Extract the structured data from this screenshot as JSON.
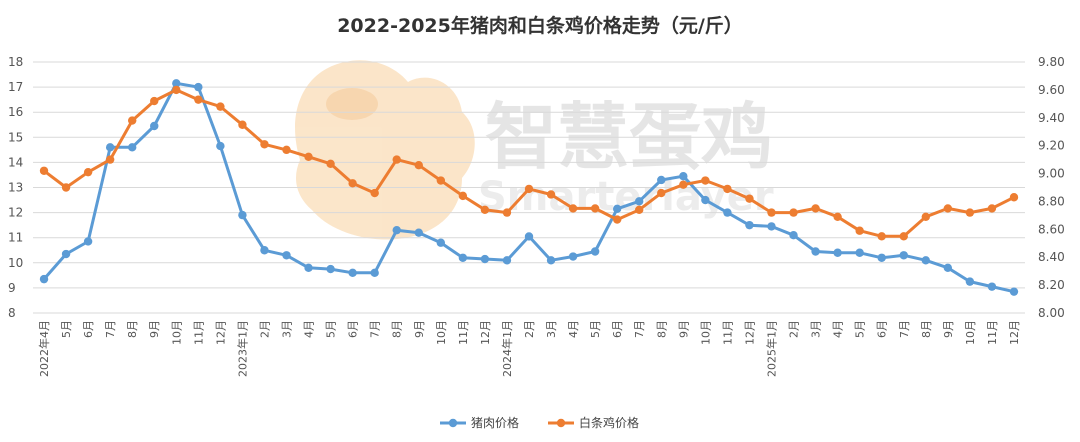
{
  "chart_data": {
    "type": "line",
    "title": "2022-2025年猪肉和白条鸡价格走势（元/斤）",
    "categories": [
      "2022年4月",
      "5月",
      "6月",
      "7月",
      "8月",
      "9月",
      "10月",
      "11月",
      "12月",
      "2023年1月",
      "2月",
      "3月",
      "4月",
      "5月",
      "6月",
      "7月",
      "8月",
      "9月",
      "10月",
      "11月",
      "12月",
      "2024年1月",
      "2月",
      "3月",
      "4月",
      "5月",
      "6月",
      "7月",
      "8月",
      "9月",
      "10月",
      "11月",
      "12月",
      "2025年1月",
      "2月",
      "3月",
      "4月",
      "5月",
      "6月",
      "7月",
      "8月",
      "9月",
      "10月",
      "11月",
      "12月"
    ],
    "y_left": {
      "min": 8,
      "max": 18,
      "ticks": [
        "8",
        "9",
        "10",
        "11",
        "12",
        "13",
        "14",
        "15",
        "16",
        "17",
        "18"
      ]
    },
    "y_right": {
      "min": 8.0,
      "max": 9.8,
      "ticks": [
        "8.00",
        "8.20",
        "8.40",
        "8.60",
        "8.80",
        "9.00",
        "9.20",
        "9.40",
        "9.60",
        "9.80"
      ]
    },
    "series": [
      {
        "name": "猪肉价格",
        "axis": "left",
        "color": "#5B9BD5",
        "values": [
          9.35,
          10.35,
          10.85,
          14.6,
          14.6,
          15.45,
          17.15,
          17.0,
          14.65,
          11.9,
          10.5,
          10.3,
          9.8,
          9.75,
          9.6,
          9.6,
          11.3,
          11.2,
          10.8,
          10.2,
          10.15,
          10.1,
          11.05,
          10.1,
          10.25,
          10.45,
          12.15,
          12.45,
          13.3,
          13.45,
          12.5,
          12.0,
          11.5,
          11.45,
          11.1,
          10.45,
          10.4,
          10.4,
          10.2,
          10.3,
          10.1,
          9.8,
          9.25,
          9.05,
          8.85
        ]
      },
      {
        "name": "白条鸡价格",
        "axis": "right",
        "color": "#ED7D31",
        "values": [
          9.02,
          8.9,
          9.01,
          9.1,
          9.38,
          9.52,
          9.6,
          9.53,
          9.48,
          9.35,
          9.21,
          9.17,
          9.12,
          9.07,
          8.93,
          8.86,
          9.1,
          9.06,
          8.95,
          8.84,
          8.74,
          8.72,
          8.89,
          8.85,
          8.75,
          8.75,
          8.67,
          8.74,
          8.86,
          8.92,
          8.95,
          8.89,
          8.82,
          8.72,
          8.72,
          8.75,
          8.69,
          8.59,
          8.55,
          8.55,
          8.69,
          8.75,
          8.72,
          8.75,
          8.83
        ]
      }
    ],
    "legend_position": "bottom-center",
    "grid": true,
    "grid_color": "#D9D9D9"
  },
  "watermark": {
    "text_cn": "智慧蛋鸡",
    "text_en": "Smarterlayer"
  }
}
